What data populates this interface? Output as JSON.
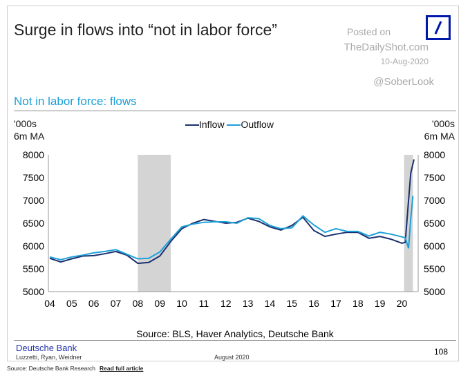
{
  "header": {
    "title": "Surge in flows into “not in labor force”",
    "posted_on": "Posted on",
    "site": "TheDailyShot.com",
    "date": "10-Aug-2020",
    "handle": "@SoberLook"
  },
  "chart_data": {
    "type": "line",
    "subtitle": "Not in labor force: flows",
    "ylabel_left": [
      "'000s",
      "6m MA"
    ],
    "ylabel_right": [
      "'000s",
      "6m MA"
    ],
    "ylim": [
      5000,
      8000
    ],
    "yticks": [
      5000,
      5500,
      6000,
      6500,
      7000,
      7500,
      8000
    ],
    "xlim": [
      2004,
      2020.8
    ],
    "xticks": [
      {
        "v": 2004,
        "l": "04"
      },
      {
        "v": 2005,
        "l": "05"
      },
      {
        "v": 2006,
        "l": "06"
      },
      {
        "v": 2007,
        "l": "07"
      },
      {
        "v": 2008,
        "l": "08"
      },
      {
        "v": 2009,
        "l": "09"
      },
      {
        "v": 2010,
        "l": "10"
      },
      {
        "v": 2011,
        "l": "11"
      },
      {
        "v": 2012,
        "l": "12"
      },
      {
        "v": 2013,
        "l": "13"
      },
      {
        "v": 2014,
        "l": "14"
      },
      {
        "v": 2015,
        "l": "15"
      },
      {
        "v": 2016,
        "l": "16"
      },
      {
        "v": 2017,
        "l": "17"
      },
      {
        "v": 2018,
        "l": "18"
      },
      {
        "v": 2019,
        "l": "19"
      },
      {
        "v": 2020,
        "l": "20"
      }
    ],
    "recessions": [
      [
        2008,
        2009.5
      ],
      [
        2020.1,
        2020.5
      ]
    ],
    "series": [
      {
        "name": "Inflow",
        "color": "#1a2f6e",
        "x": [
          2004,
          2004.5,
          2005,
          2005.5,
          2006,
          2006.5,
          2007,
          2007.5,
          2008,
          2008.5,
          2009,
          2009.5,
          2010,
          2010.5,
          2011,
          2011.5,
          2012,
          2012.5,
          2013,
          2013.5,
          2014,
          2014.5,
          2015,
          2015.5,
          2016,
          2016.5,
          2017,
          2017.5,
          2018,
          2018.5,
          2019,
          2019.5,
          2020,
          2020.15,
          2020.3,
          2020.4,
          2020.55
        ],
        "values": [
          5730,
          5650,
          5720,
          5780,
          5790,
          5830,
          5880,
          5800,
          5620,
          5640,
          5780,
          6100,
          6380,
          6500,
          6580,
          6540,
          6500,
          6520,
          6610,
          6540,
          6420,
          6350,
          6450,
          6630,
          6340,
          6210,
          6260,
          6300,
          6300,
          6170,
          6210,
          6150,
          6060,
          6080,
          7000,
          7600,
          7900
        ]
      },
      {
        "name": "Outflow",
        "color": "#1ca0d8",
        "x": [
          2004,
          2004.5,
          2005,
          2005.5,
          2006,
          2006.5,
          2007,
          2007.5,
          2008,
          2008.5,
          2009,
          2009.5,
          2010,
          2010.5,
          2011,
          2011.5,
          2012,
          2012.5,
          2013,
          2013.5,
          2014,
          2014.5,
          2015,
          2015.5,
          2016,
          2016.5,
          2017,
          2017.5,
          2018,
          2018.5,
          2019,
          2019.5,
          2020,
          2020.15,
          2020.3,
          2020.4,
          2020.5
        ],
        "values": [
          5760,
          5700,
          5760,
          5800,
          5850,
          5880,
          5920,
          5820,
          5720,
          5730,
          5870,
          6150,
          6420,
          6480,
          6520,
          6530,
          6530,
          6500,
          6620,
          6600,
          6450,
          6380,
          6400,
          6660,
          6460,
          6300,
          6380,
          6320,
          6320,
          6220,
          6300,
          6260,
          6200,
          6180,
          5950,
          6600,
          7100
        ]
      }
    ],
    "source": "Source: BLS, Haver Analytics, Deutsche Bank"
  },
  "footer": {
    "brand": "Deutsche Bank",
    "authors": "Luzzetti, Ryan, Weidner",
    "month": "August 2020",
    "page": "108",
    "caption": "Source: Deutsche Bank Research",
    "link": "Read full article"
  }
}
